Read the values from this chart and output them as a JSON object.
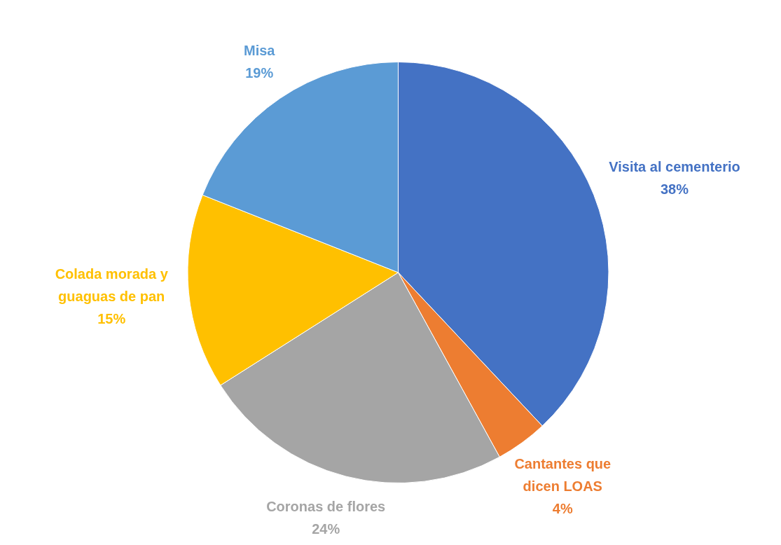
{
  "chart_data": {
    "type": "pie",
    "categories": [
      "Visita al cementerio",
      "Cantantes que dicen LOAS",
      "Coronas de flores",
      "Colada morada y guaguas de pan",
      "Misa"
    ],
    "values": [
      38,
      4,
      24,
      15,
      19
    ],
    "value_labels": [
      "38%",
      "4%",
      "24%",
      "15%",
      "19%"
    ],
    "colors": [
      "#4472c4",
      "#ed7d31",
      "#a5a5a5",
      "#ffc000",
      "#5b9bd5"
    ],
    "legend": false
  }
}
